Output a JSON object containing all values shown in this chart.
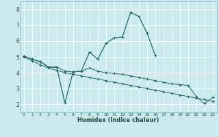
{
  "title": "",
  "xlabel": "Humidex (Indice chaleur)",
  "xlim": [
    -0.5,
    23.5
  ],
  "ylim": [
    1.5,
    8.5
  ],
  "yticks": [
    2,
    3,
    4,
    5,
    6,
    7,
    8
  ],
  "xticks": [
    0,
    1,
    2,
    3,
    4,
    5,
    6,
    7,
    8,
    9,
    10,
    11,
    12,
    13,
    14,
    15,
    16,
    17,
    18,
    19,
    20,
    21,
    22,
    23
  ],
  "bg_color": "#cce9ee",
  "grid_color": "#ffffff",
  "line_color": "#1e6b5e",
  "series": [
    {
      "x": [
        0,
        1,
        2,
        3,
        4,
        5,
        6,
        7,
        8,
        9,
        10,
        11,
        12,
        13,
        14,
        15,
        16
      ],
      "y": [
        5.05,
        4.85,
        4.7,
        4.35,
        4.35,
        2.1,
        4.05,
        4.1,
        5.3,
        4.85,
        5.85,
        6.2,
        6.25,
        7.8,
        7.55,
        6.5,
        5.1
      ]
    },
    {
      "x": [
        0,
        1,
        2,
        3,
        4,
        5,
        6,
        7,
        8,
        9,
        10,
        11,
        12,
        13,
        14,
        15,
        16,
        17,
        18,
        19,
        20,
        21,
        22,
        23
      ],
      "y": [
        5.05,
        4.85,
        4.7,
        4.35,
        4.35,
        4.1,
        4.05,
        4.1,
        4.3,
        4.1,
        4.0,
        3.95,
        3.9,
        3.8,
        3.7,
        3.6,
        3.5,
        3.4,
        3.3,
        3.25,
        3.2,
        2.5,
        2.05,
        2.45
      ]
    },
    {
      "x": [
        0,
        1,
        2,
        3,
        4,
        5,
        6,
        7,
        8,
        9,
        10,
        11,
        12,
        13,
        14,
        15,
        16,
        17,
        18,
        19,
        20,
        21,
        22,
        23
      ],
      "y": [
        5.0,
        4.75,
        4.5,
        4.3,
        4.15,
        4.0,
        3.9,
        3.8,
        3.7,
        3.6,
        3.5,
        3.4,
        3.3,
        3.2,
        3.1,
        3.0,
        2.9,
        2.8,
        2.7,
        2.6,
        2.5,
        2.4,
        2.3,
        2.2
      ]
    }
  ]
}
